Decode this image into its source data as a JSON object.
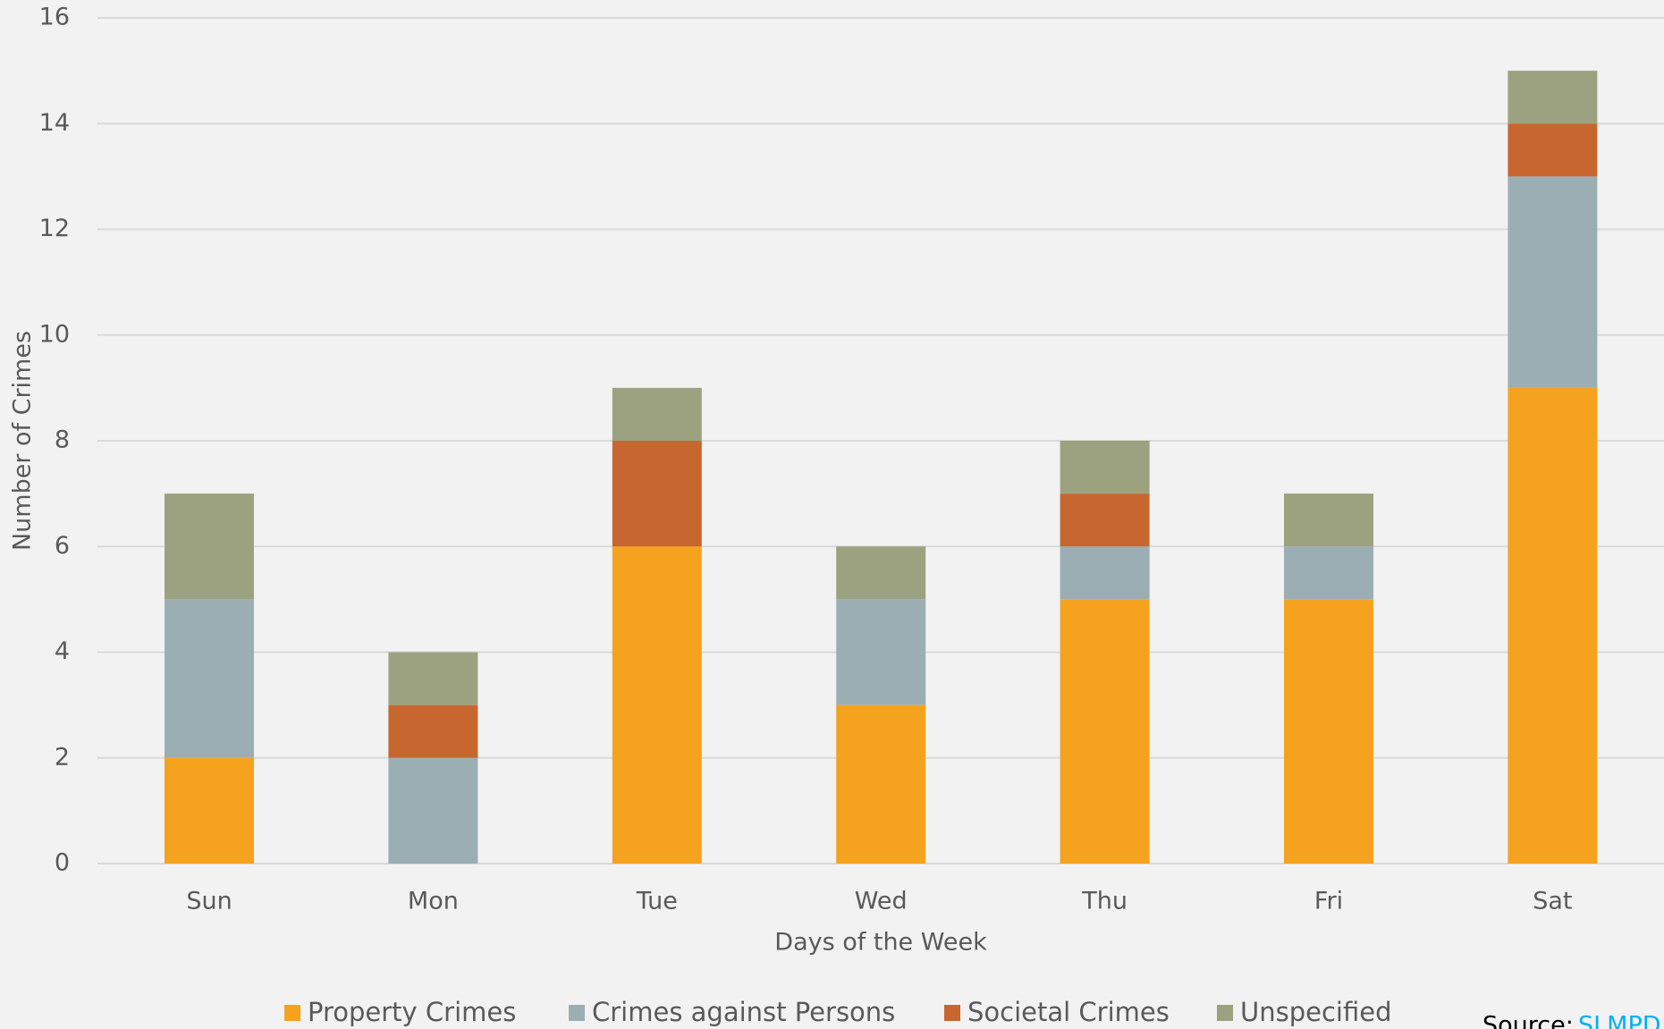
{
  "chart_data": {
    "type": "stacked_bar",
    "xlabel": "Days of the Week",
    "ylabel": "Number of Crimes",
    "categories": [
      "Sun",
      "Mon",
      "Tue",
      "Wed",
      "Thu",
      "Fri",
      "Sat"
    ],
    "series": [
      {
        "name": "Property Crimes",
        "color": "#f5a31f",
        "values": [
          2,
          0,
          6,
          3,
          5,
          5,
          9
        ]
      },
      {
        "name": "Crimes against Persons",
        "color": "#9baeb4",
        "values": [
          3,
          2,
          0,
          2,
          1,
          1,
          4
        ]
      },
      {
        "name": "Societal Crimes",
        "color": "#c8662f",
        "values": [
          0,
          1,
          2,
          0,
          1,
          0,
          1
        ]
      },
      {
        "name": "Unspecified",
        "color": "#9ca280",
        "values": [
          2,
          1,
          1,
          1,
          1,
          1,
          1
        ]
      }
    ],
    "ylim": [
      0,
      16
    ],
    "yticks": [
      0,
      2,
      4,
      6,
      8,
      10,
      12,
      14,
      16
    ],
    "grid": true,
    "legend": "bottom",
    "source_label": "Source:",
    "source_link": "SLMPD"
  }
}
